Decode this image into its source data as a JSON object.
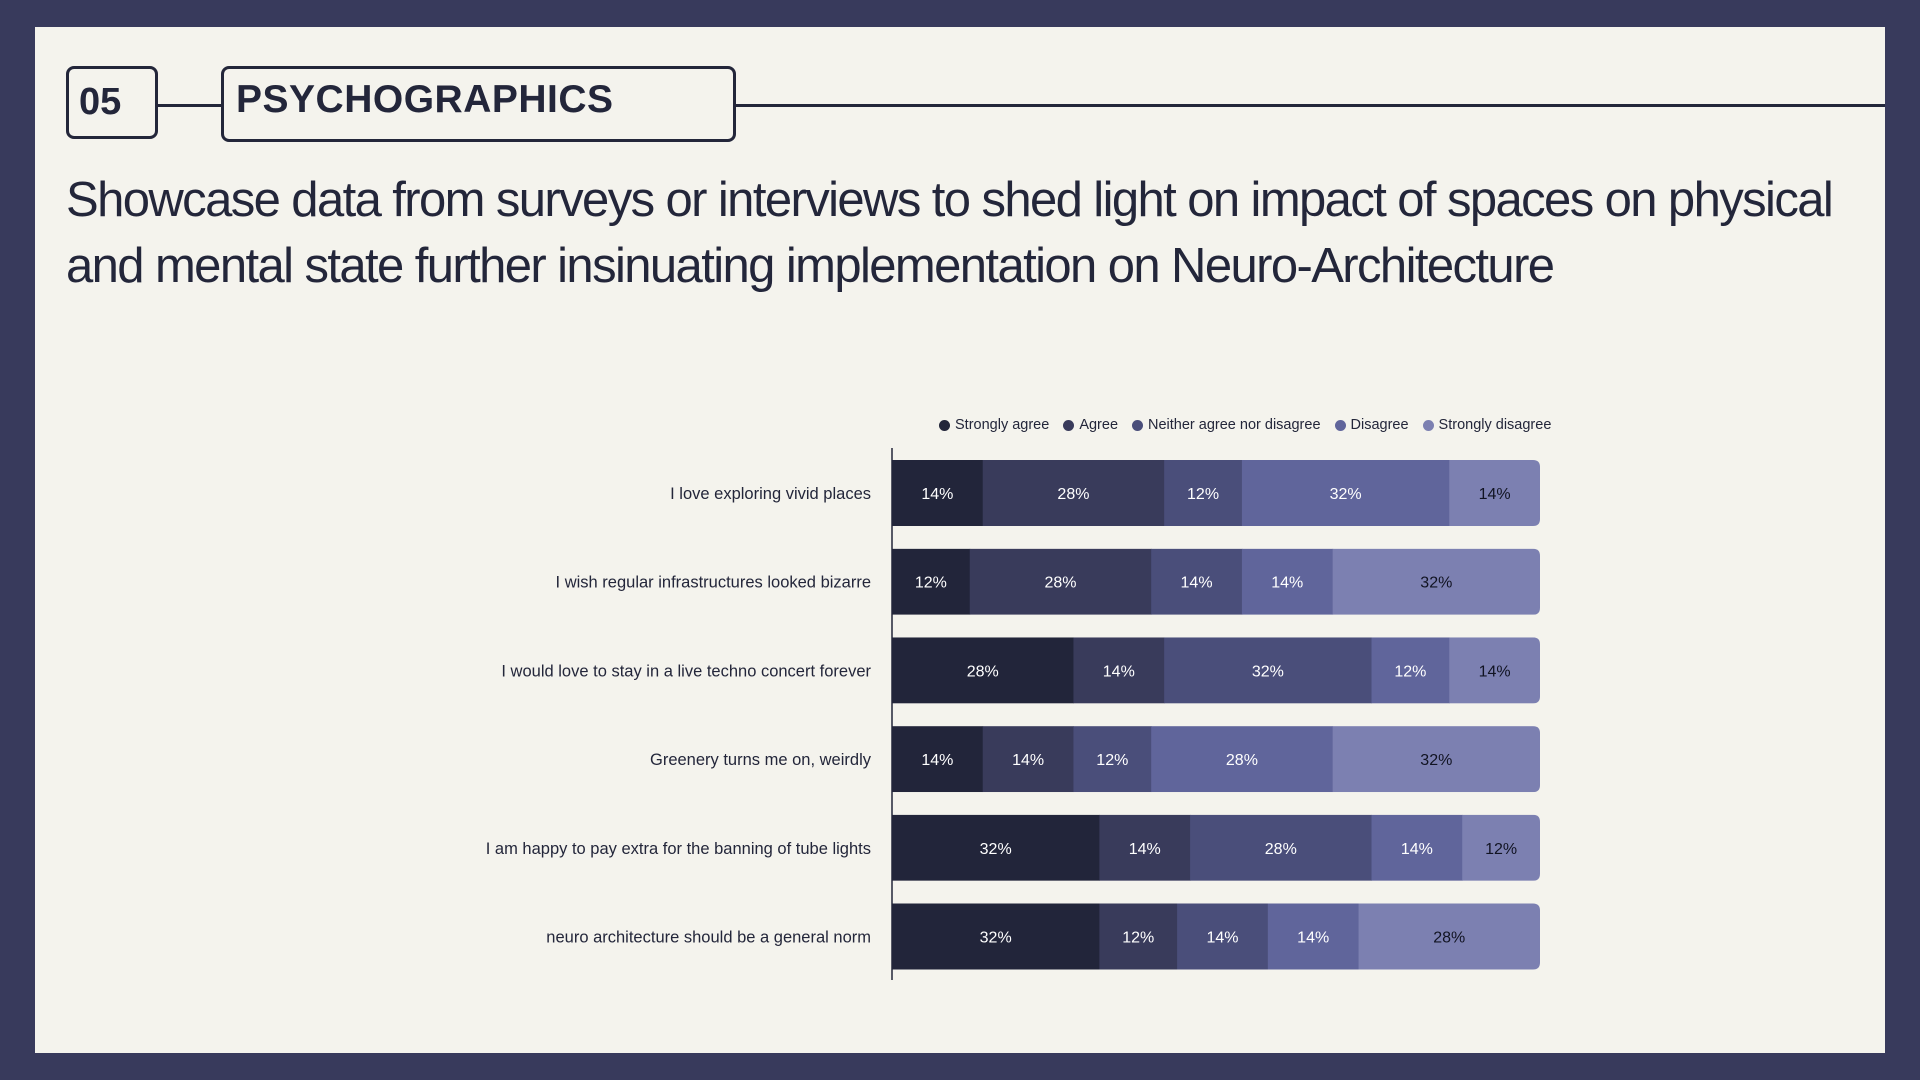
{
  "header": {
    "section_number": "05",
    "section_title": "PSYCHOGRAPHICS",
    "headline": "Showcase data from surveys or interviews to shed light on impact of spaces on physical and mental state further insinuating implementation on Neuro-Architecture"
  },
  "colors": {
    "background": "#383a5c",
    "panel": "#f4f3ed",
    "text": "#23263a",
    "series": [
      "#22253a",
      "#393b5b",
      "#4a4e7a",
      "#60659b",
      "#7c80b1"
    ]
  },
  "chart_data": {
    "type": "bar",
    "orientation": "horizontal",
    "stacked": true,
    "title": "",
    "xlabel": "",
    "ylabel": "",
    "xlim": [
      0,
      100
    ],
    "unit": "%",
    "grid": false,
    "legend_position": "top",
    "categories": [
      "I love exploring vivid places",
      "I wish regular infrastructures looked bizarre",
      "I would love to stay in a live techno concert forever",
      "Greenery turns me on, weirdly",
      "I am happy to pay extra for the banning of tube lights",
      "neuro architecture should be a general norm"
    ],
    "series": [
      {
        "name": "Strongly agree",
        "values": [
          14,
          12,
          28,
          14,
          32,
          32
        ]
      },
      {
        "name": "Agree",
        "values": [
          28,
          28,
          14,
          14,
          14,
          12
        ]
      },
      {
        "name": "Neither agree nor disagree",
        "values": [
          12,
          14,
          32,
          12,
          28,
          14
        ]
      },
      {
        "name": "Disagree",
        "values": [
          32,
          14,
          12,
          28,
          14,
          14
        ]
      },
      {
        "name": "Strongly disagree",
        "values": [
          14,
          32,
          14,
          32,
          12,
          28
        ]
      }
    ]
  }
}
